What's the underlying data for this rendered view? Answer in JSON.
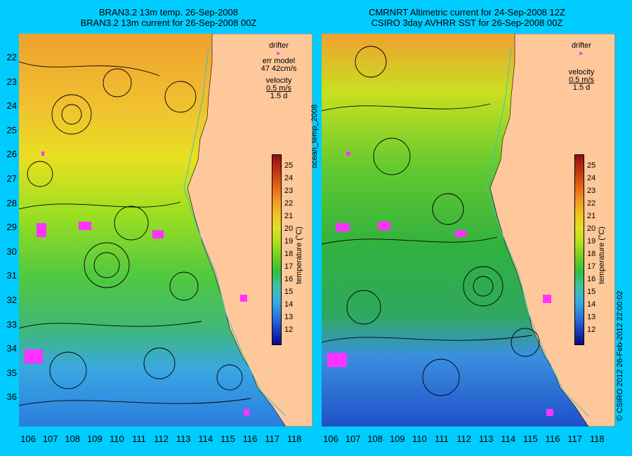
{
  "left_panel": {
    "title_line1": "BRAN3.2 13m temp. 26-Sep-2008",
    "title_line2": "BRAN3.2 13m current for 26-Sep-2008 00Z",
    "legend": {
      "drifter": "drifter",
      "err_model": "err model",
      "err_value": "47 42cm/s",
      "velocity": "velocity",
      "velocity_scale": "0.5 m/s",
      "duration": "1.5 d"
    }
  },
  "right_panel": {
    "title_line1": "CMRNRT Altimetric current for 24-Sep-2008 12Z",
    "title_line2": "CSIRO 3day AVHRR SST for 26-Sep-2008 00Z",
    "legend": {
      "drifter": "drifter",
      "velocity": "velocity",
      "velocity_scale": "0.5 m/s",
      "duration": "1.5 d"
    }
  },
  "y_ticks": [
    "22",
    "23",
    "24",
    "25",
    "26",
    "27",
    "28",
    "29",
    "30",
    "31",
    "32",
    "33",
    "34",
    "35",
    "36"
  ],
  "x_ticks": [
    "106",
    "107",
    "108",
    "109",
    "110",
    "111",
    "112",
    "113",
    "114",
    "115",
    "116",
    "117",
    "118"
  ],
  "colorbar": {
    "ticks": [
      "25",
      "24",
      "23",
      "22",
      "21",
      "20",
      "19",
      "18",
      "17",
      "16",
      "15",
      "14",
      "13",
      "12"
    ],
    "label": "temperature (°C)",
    "colors": [
      "#0a0a80",
      "#1a3fc0",
      "#2a7de0",
      "#3aaee0",
      "#40c0a0",
      "#30c040",
      "#70d020",
      "#b0e020",
      "#e0e020",
      "#f0c020",
      "#f09020",
      "#e06010",
      "#c03010",
      "#901010"
    ]
  },
  "side_labels": {
    "left": "ocean_temp_2008",
    "right": "© CSIRO 2012   26-Feb-2012 22:00:02"
  },
  "colors": {
    "background": "#00ccff",
    "land": "#ffc89a",
    "drifter": "#ff33ff",
    "coast_line": "#40c0c0"
  }
}
